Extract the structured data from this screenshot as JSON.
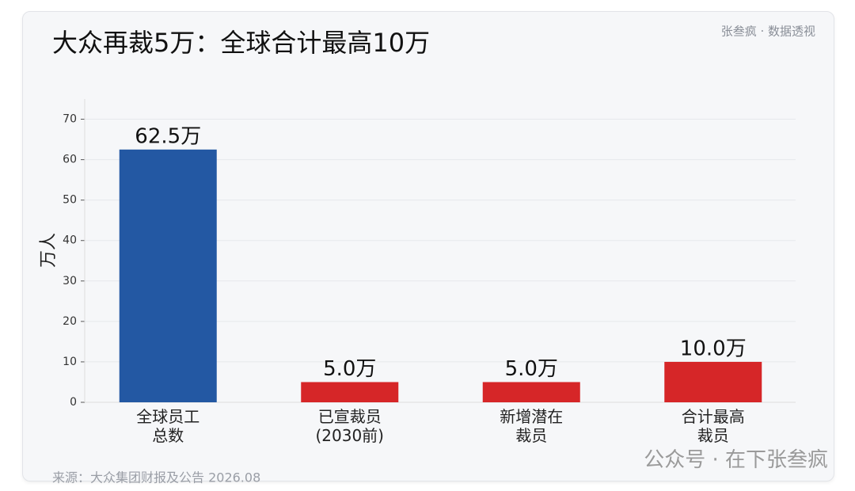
{
  "chart_data": {
    "type": "bar",
    "title": "大众再裁5万：全球合计最高10万",
    "subtitle": "张叁疯 · 数据透视",
    "ylabel": "万人",
    "categories": [
      "全球员工\n总数",
      "已宣裁员\n(2030前)",
      "新增潜在\n裁员",
      "合计最高\n裁员"
    ],
    "values": [
      62.5,
      5,
      5,
      10
    ],
    "value_labels": [
      "62.5万",
      "5.0万",
      "5.0万",
      "10.0万"
    ],
    "colors": [
      "#2358a3",
      "#d62628",
      "#d62628",
      "#d62628"
    ],
    "ylim": [
      0,
      75
    ],
    "yticks": [
      0,
      10,
      20,
      30,
      40,
      50,
      60,
      70
    ],
    "grid": true,
    "source": "来源：大众集团财报及公告 2026.08",
    "watermark": "公众号 · 在下张叁疯"
  }
}
